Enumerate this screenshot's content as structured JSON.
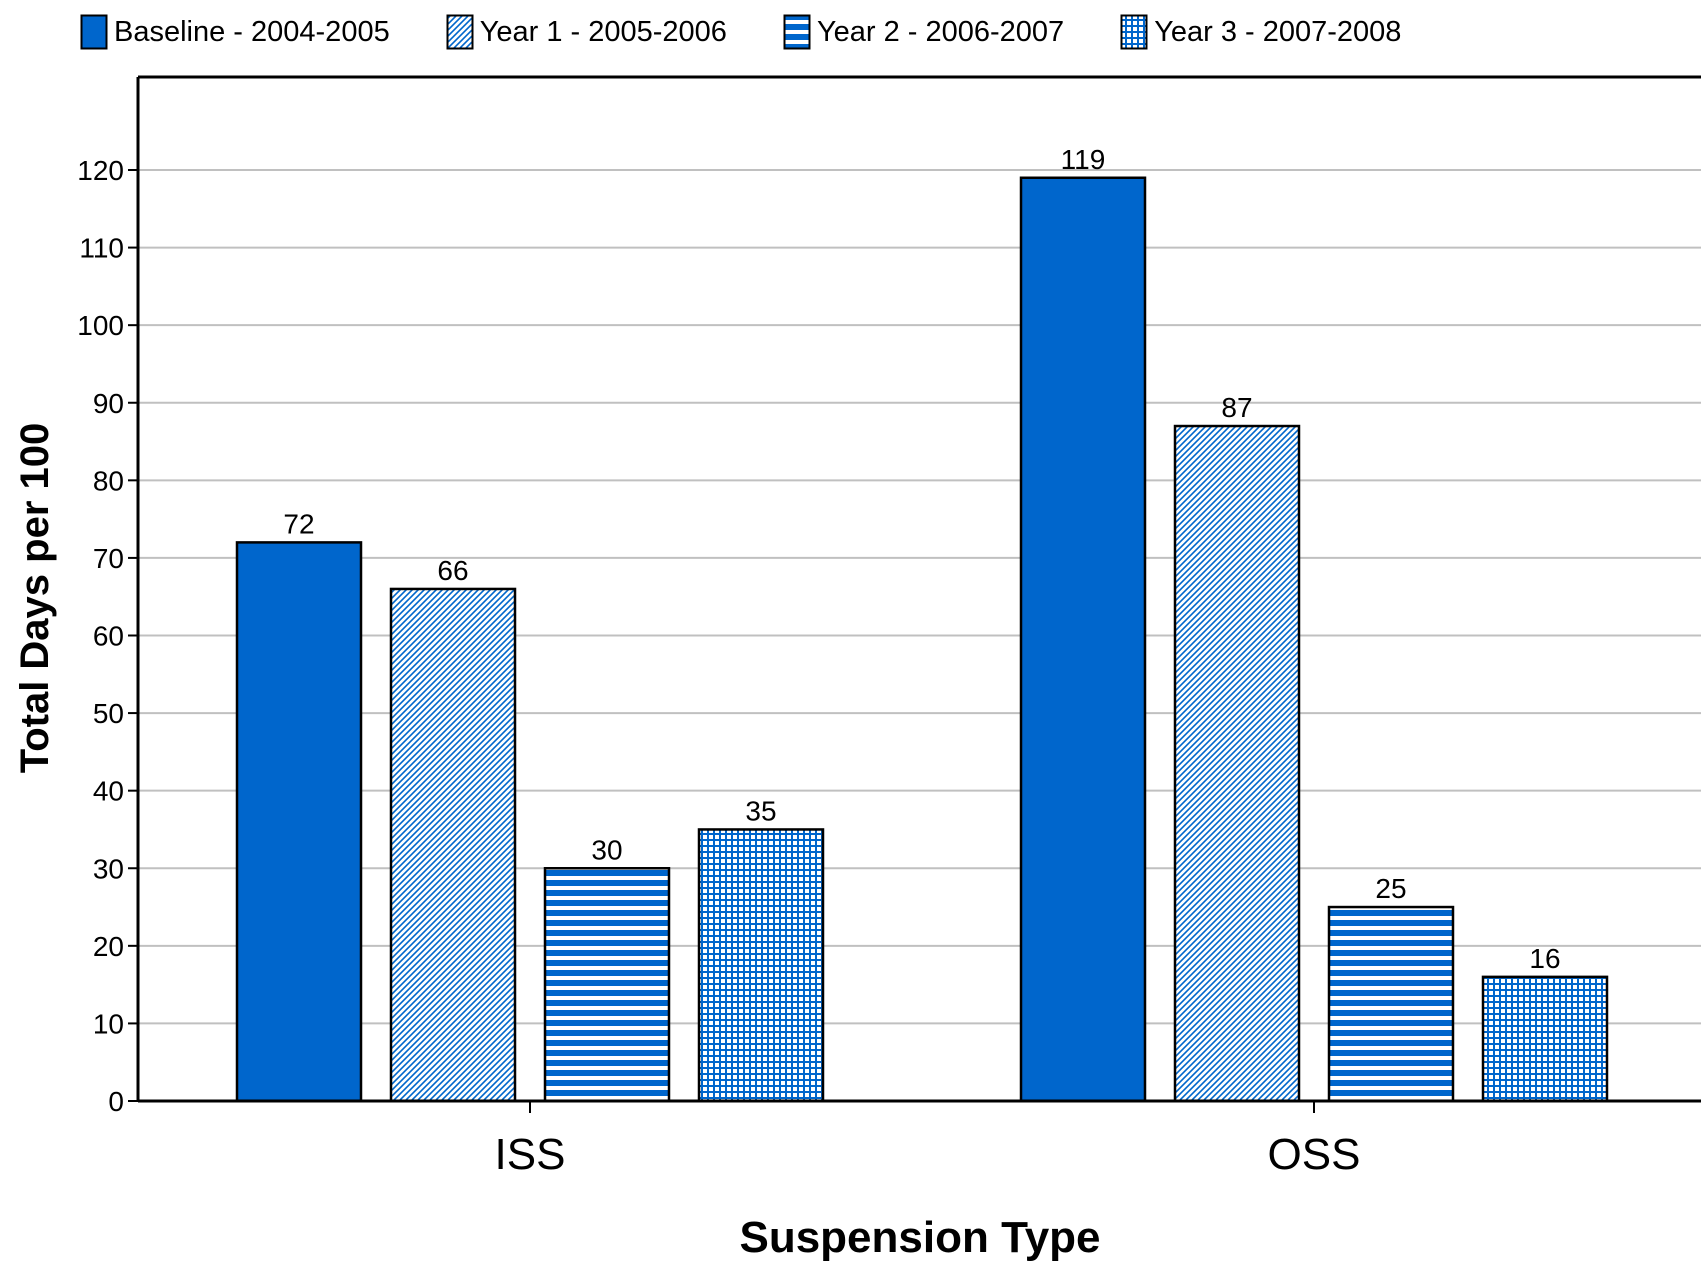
{
  "chart_data": {
    "type": "bar",
    "title": "",
    "xlabel": "Suspension Type",
    "ylabel": "Total Days per 100",
    "categories": [
      "ISS",
      "OSS"
    ],
    "ylim": [
      0,
      130
    ],
    "yticks": [
      0,
      10,
      20,
      30,
      40,
      50,
      60,
      70,
      80,
      90,
      100,
      110,
      120
    ],
    "grid": true,
    "legend_position": "top",
    "series": [
      {
        "name": "Baseline - 2004-2005",
        "values": [
          72,
          119
        ],
        "pattern": "solid"
      },
      {
        "name": "Year 1 - 2005-2006",
        "values": [
          66,
          87
        ],
        "pattern": "diagonal"
      },
      {
        "name": "Year 2 - 2006-2007",
        "values": [
          30,
          25
        ],
        "pattern": "horizontal"
      },
      {
        "name": "Year 3 - 2007-2008",
        "values": [
          35,
          16
        ],
        "pattern": "grid"
      }
    ],
    "data_labels": [
      [
        "72",
        "119"
      ],
      [
        "66",
        "87"
      ],
      [
        "30",
        "25"
      ],
      [
        "35",
        "16"
      ]
    ],
    "colors": {
      "bar": "#0066cc",
      "grid": "#c0c0c0",
      "axis": "#000000"
    }
  }
}
